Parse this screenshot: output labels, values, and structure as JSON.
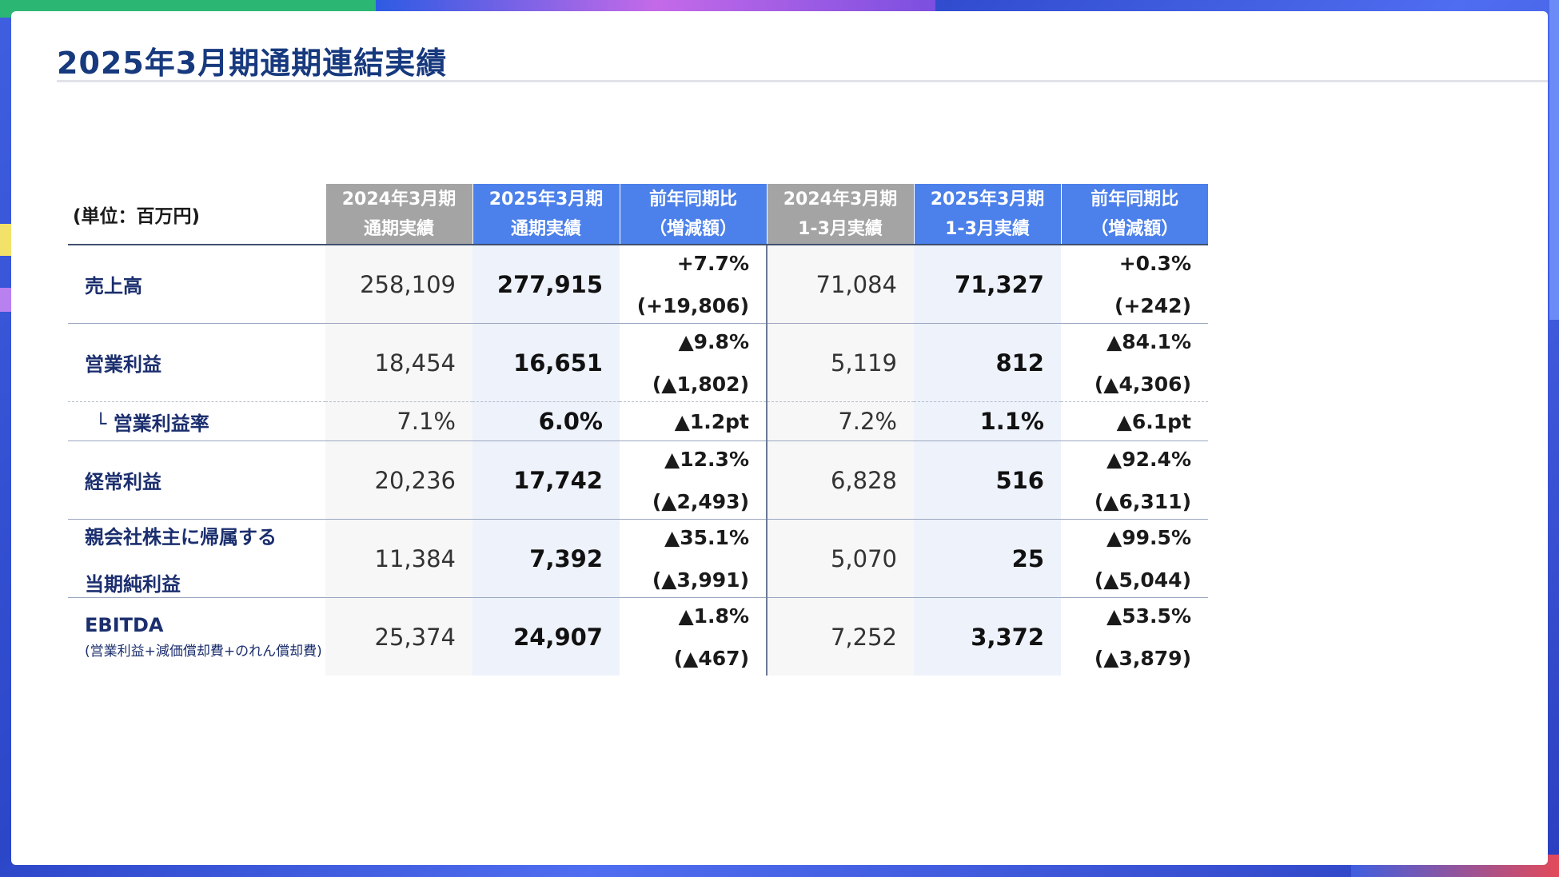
{
  "title": "2025年3月期通期連結実績",
  "table": {
    "unit_label": "(単位：百万円)",
    "headers": [
      {
        "line1": "2024年3月期",
        "line2": "通期実績",
        "style": "gray"
      },
      {
        "line1": "2025年3月期",
        "line2": "通期実績",
        "style": "blue"
      },
      {
        "line1": "前年同期比",
        "line2": "（増減額）",
        "style": "blue"
      },
      {
        "line1": "2024年3月期",
        "line2": "1-3月実績",
        "style": "gray"
      },
      {
        "line1": "2025年3月期",
        "line2": "1-3月実績",
        "style": "blue"
      },
      {
        "line1": "前年同期比",
        "line2": "（増減額）",
        "style": "blue"
      }
    ],
    "rows": [
      {
        "label": "売上高",
        "fy2024": "258,109",
        "fy2025": "277,915",
        "fy_yoy_pct": "+7.7%",
        "fy_yoy_amt": "(+19,806)",
        "q2024": "71,084",
        "q2025": "71,327",
        "q_yoy_pct": "+0.3%",
        "q_yoy_amt": "(+242)"
      },
      {
        "label": "営業利益",
        "fy2024": "18,454",
        "fy2025": "16,651",
        "fy_yoy_pct": "▲9.8%",
        "fy_yoy_amt": "(▲1,802)",
        "q2024": "5,119",
        "q2025": "812",
        "q_yoy_pct": "▲84.1%",
        "q_yoy_amt": "(▲4,306)"
      },
      {
        "label": "└ 営業利益率",
        "fy2024": "7.1%",
        "fy2025": "6.0%",
        "fy_yoy": "▲1.2pt",
        "q2024": "7.2%",
        "q2025": "1.1%",
        "q_yoy": "▲6.1pt"
      },
      {
        "label": "経常利益",
        "fy2024": "20,236",
        "fy2025": "17,742",
        "fy_yoy_pct": "▲12.3%",
        "fy_yoy_amt": "(▲2,493)",
        "q2024": "6,828",
        "q2025": "516",
        "q_yoy_pct": "▲92.4%",
        "q_yoy_amt": "(▲6,311)"
      },
      {
        "label_line1": "親会社株主に帰属する",
        "label_line2": "当期純利益",
        "fy2024": "11,384",
        "fy2025": "7,392",
        "fy_yoy_pct": "▲35.1%",
        "fy_yoy_amt": "(▲3,991)",
        "q2024": "5,070",
        "q2025": "25",
        "q_yoy_pct": "▲99.5%",
        "q_yoy_amt": "(▲5,044)"
      },
      {
        "label": "EBITDA",
        "sublabel": "(営業利益+減価償却費+のれん償却費)",
        "fy2024": "25,374",
        "fy2025": "24,907",
        "fy_yoy_pct": "▲1.8%",
        "fy_yoy_amt": "(▲467)",
        "q2024": "7,252",
        "q2025": "3,372",
        "q_yoy_pct": "▲53.5%",
        "q_yoy_amt": "(▲3,879)"
      }
    ]
  },
  "colors": {
    "title": "#17397e",
    "header_gray": "#a4a4a4",
    "header_blue": "#4c80ea",
    "label_text": "#1b2e6e",
    "current_col_bg": "#eef2fb"
  }
}
